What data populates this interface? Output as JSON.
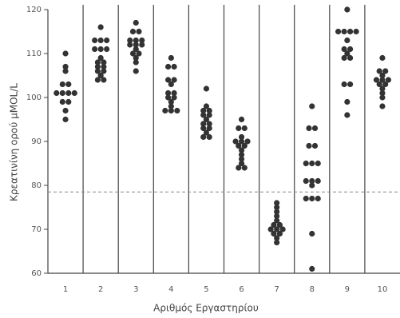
{
  "chart_data": {
    "type": "dot",
    "ylabel": "Κρεατινίνη ορού μMOL/L",
    "xlabel": "Αριθμός Εργαστηρίου",
    "categories": [
      "1",
      "2",
      "3",
      "4",
      "5",
      "6",
      "7",
      "8",
      "9",
      "10"
    ],
    "values": [
      [
        110,
        107,
        106,
        103,
        103,
        101,
        101,
        101,
        101,
        99,
        99,
        97,
        95
      ],
      [
        116,
        113,
        113,
        113,
        111,
        111,
        111,
        109,
        108,
        108,
        107,
        107,
        106,
        106,
        105,
        104,
        104
      ],
      [
        117,
        115,
        115,
        113,
        113,
        113,
        112,
        112,
        112,
        111,
        110,
        110,
        109,
        108,
        106
      ],
      [
        109,
        107,
        107,
        104,
        104,
        103,
        101,
        101,
        100,
        100,
        99,
        98,
        97,
        97,
        97
      ],
      [
        102,
        98,
        97,
        97,
        96,
        96,
        95,
        94,
        94,
        93,
        93,
        92,
        91,
        91
      ],
      [
        95,
        93,
        93,
        91,
        90,
        90,
        90,
        89,
        89,
        88,
        87,
        86,
        85,
        84,
        84
      ],
      [
        76,
        75,
        74,
        73,
        72,
        71,
        71,
        70,
        70,
        70,
        69,
        69,
        68,
        67
      ],
      [
        98,
        93,
        93,
        89,
        89,
        85,
        85,
        85,
        81,
        81,
        81,
        80,
        77,
        77,
        77,
        69,
        61
      ],
      [
        120,
        115,
        115,
        115,
        115,
        113,
        111,
        111,
        110,
        109,
        109,
        103,
        103,
        99,
        96
      ],
      [
        109,
        106,
        106,
        105,
        104,
        104,
        104,
        103,
        103,
        102,
        101,
        100,
        98
      ]
    ],
    "color": "#333333",
    "reference_line": 78.5,
    "ylim": [
      60,
      120
    ],
    "yticks": [
      60,
      70,
      80,
      90,
      100,
      110,
      120
    ]
  }
}
